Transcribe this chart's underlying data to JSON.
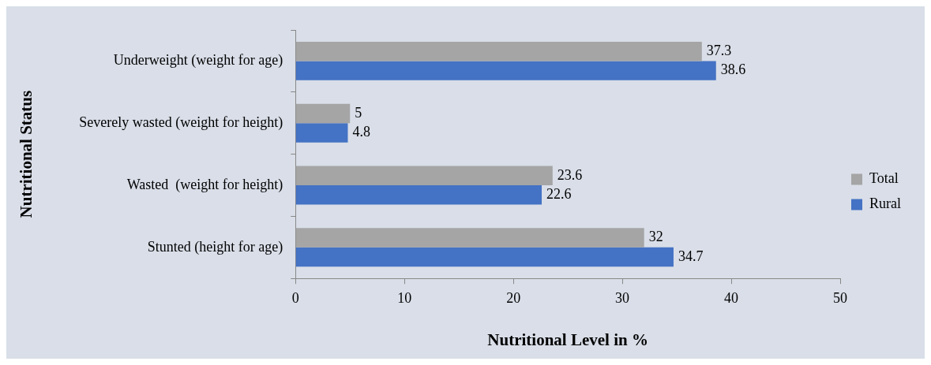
{
  "chart_data": {
    "type": "bar",
    "orientation": "horizontal",
    "xlabel": "Nutritional Level in %",
    "ylabel": "Nutritional Status",
    "categories": [
      "Underweight (weight for age)",
      "Severely wasted (weight for height)",
      "Wasted  (weight for height)",
      "Stunted (height for age)"
    ],
    "series": [
      {
        "name": "Total",
        "color": "#a5a5a5",
        "values": [
          37.3,
          5,
          23.6,
          32
        ]
      },
      {
        "name": "Rural",
        "color": "#4472c4",
        "values": [
          38.6,
          4.8,
          22.6,
          34.7
        ]
      }
    ],
    "xlim": [
      0,
      50
    ],
    "xticks": [
      0,
      10,
      20,
      30,
      40,
      50
    ],
    "grid": false,
    "legend": "right",
    "data_labels": true
  }
}
